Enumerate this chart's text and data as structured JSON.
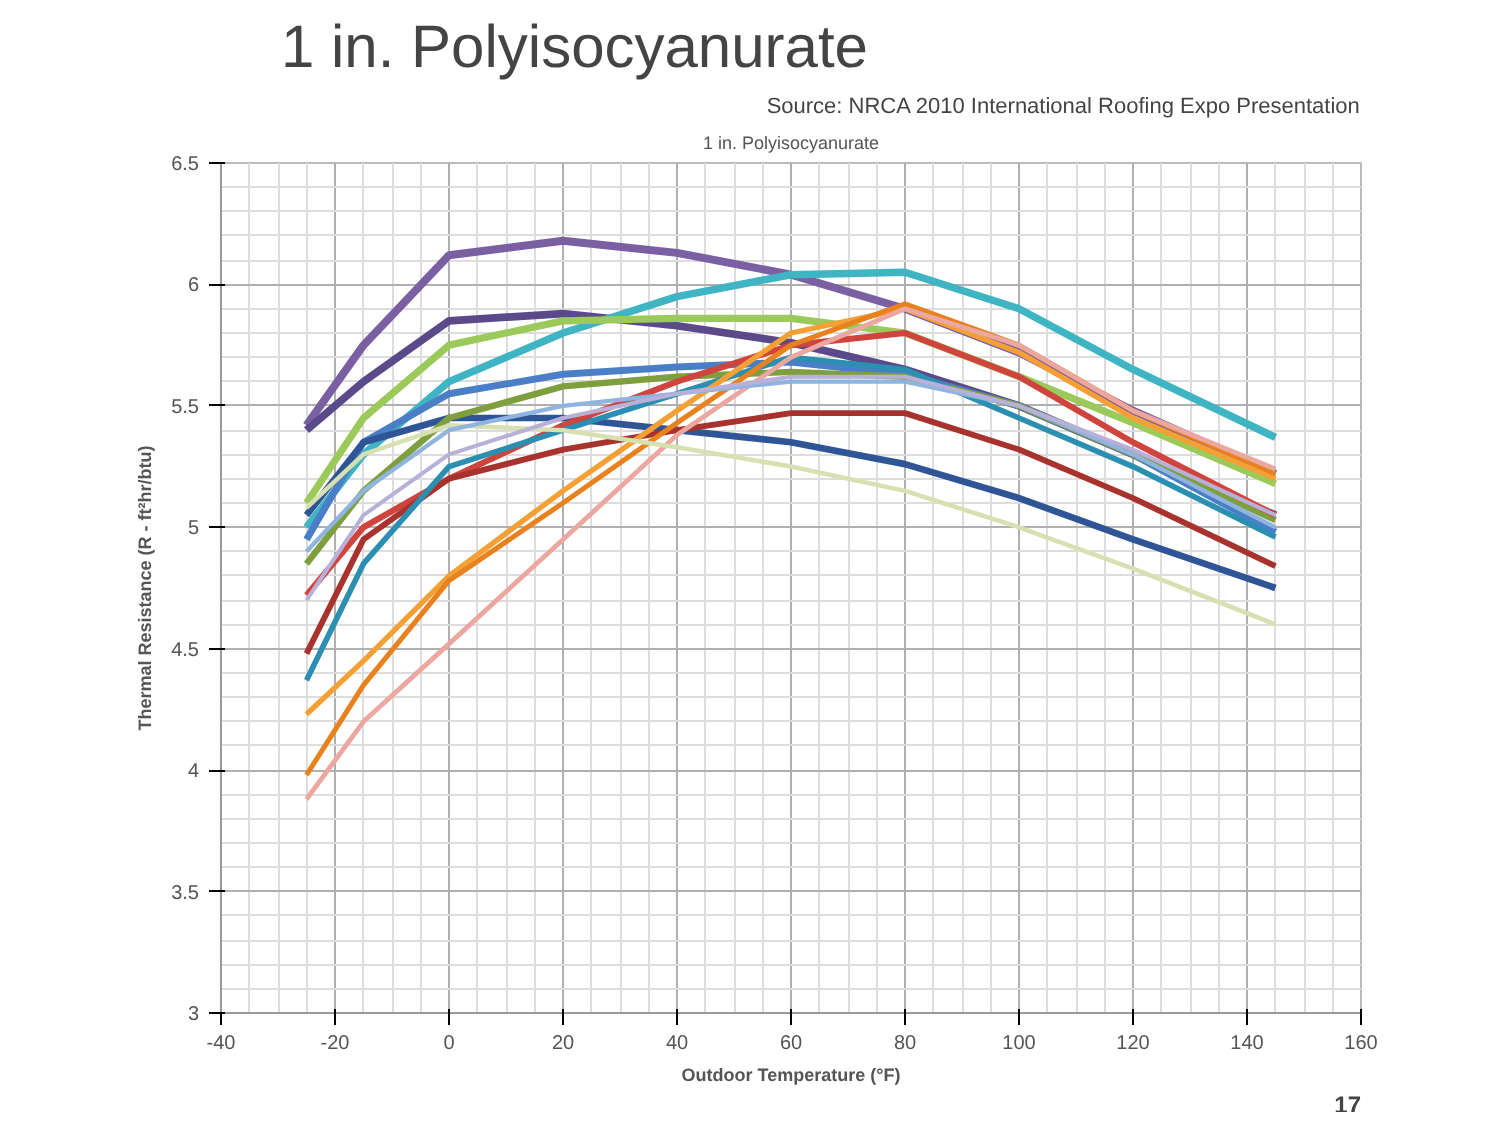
{
  "chart_data": {
    "type": "line",
    "title": "1 in. Polyisocyanurate",
    "subtitle": "1 in. Polyisocyanurate",
    "xlabel": "Outdoor Temperature (°F)",
    "ylabel": "Thermal Resistance (R - ft²hr/btu)",
    "annotations": [
      "Source: NRCA 2010 International Roofing Expo Presentation",
      "17"
    ],
    "x": [
      -25,
      -15,
      0,
      20,
      40,
      60,
      80,
      100,
      120,
      145
    ],
    "series": [
      {
        "color": "#7b5fa3",
        "values": [
          5.42,
          5.75,
          6.12,
          6.18,
          6.13,
          6.04,
          5.9,
          5.72,
          5.48,
          5.22
        ]
      },
      {
        "color": "#5b4a8a",
        "values": [
          5.4,
          5.6,
          5.85,
          5.88,
          5.83,
          5.76,
          5.65,
          5.5,
          5.3,
          5.05
        ]
      },
      {
        "color": "#3fb5c4",
        "values": [
          5.0,
          5.3,
          5.6,
          5.8,
          5.95,
          6.04,
          6.05,
          5.9,
          5.65,
          5.37
        ]
      },
      {
        "color": "#9bc95a",
        "values": [
          5.1,
          5.45,
          5.75,
          5.85,
          5.86,
          5.86,
          5.8,
          5.62,
          5.43,
          5.18
        ]
      },
      {
        "color": "#4a7fc7",
        "values": [
          4.95,
          5.35,
          5.55,
          5.63,
          5.66,
          5.68,
          5.63,
          5.5,
          5.3,
          4.98
        ]
      },
      {
        "color": "#2f5597",
        "values": [
          5.05,
          5.35,
          5.45,
          5.45,
          5.4,
          5.35,
          5.26,
          5.12,
          4.95,
          4.75
        ]
      },
      {
        "color": "#7f9f3f",
        "values": [
          4.85,
          5.15,
          5.45,
          5.58,
          5.62,
          5.64,
          5.62,
          5.5,
          5.3,
          5.03
        ]
      },
      {
        "color": "#d0443e",
        "values": [
          4.72,
          5.0,
          5.2,
          5.42,
          5.6,
          5.75,
          5.8,
          5.62,
          5.35,
          5.05
        ]
      },
      {
        "color": "#a8322d",
        "values": [
          4.48,
          4.95,
          5.2,
          5.32,
          5.4,
          5.47,
          5.47,
          5.32,
          5.12,
          4.84
        ]
      },
      {
        "color": "#2a8fb0",
        "values": [
          4.37,
          4.85,
          5.25,
          5.4,
          5.55,
          5.7,
          5.65,
          5.45,
          5.25,
          4.96
        ]
      },
      {
        "color": "#f5a035",
        "values": [
          4.23,
          4.45,
          4.8,
          5.15,
          5.48,
          5.8,
          5.9,
          5.72,
          5.45,
          5.2
        ]
      },
      {
        "color": "#e8821e",
        "values": [
          3.98,
          4.35,
          4.78,
          5.1,
          5.43,
          5.75,
          5.92,
          5.75,
          5.48,
          5.22
        ]
      },
      {
        "color": "#eba7a0",
        "values": [
          3.88,
          4.2,
          4.52,
          4.95,
          5.38,
          5.7,
          5.9,
          5.75,
          5.48,
          5.24
        ]
      },
      {
        "color": "#d7e0b0",
        "values": [
          5.08,
          5.3,
          5.42,
          5.4,
          5.33,
          5.25,
          5.15,
          5.0,
          4.83,
          4.6
        ]
      },
      {
        "color": "#8fb4e0",
        "values": [
          4.9,
          5.15,
          5.4,
          5.5,
          5.55,
          5.6,
          5.6,
          5.5,
          5.3,
          5.0
        ]
      },
      {
        "color": "#b8b0d8",
        "values": [
          4.7,
          5.05,
          5.3,
          5.45,
          5.55,
          5.62,
          5.62,
          5.5,
          5.32,
          5.05
        ]
      }
    ],
    "xlim": [
      -40,
      160
    ],
    "xticks": [
      -40,
      -20,
      0,
      20,
      40,
      60,
      80,
      100,
      120,
      140,
      160
    ],
    "ylim": [
      3,
      6.5
    ],
    "yticks": [
      3,
      {
        "value": 3.5,
        "label": "3.5"
      },
      4,
      {
        "value": 4.5,
        "label": "4.5"
      },
      5,
      {
        "value": 5.5,
        "label": "5.5"
      },
      6,
      {
        "value": 6.5,
        "label": "6.5"
      }
    ],
    "grid": true,
    "marker": "none",
    "line_style": "solid"
  }
}
